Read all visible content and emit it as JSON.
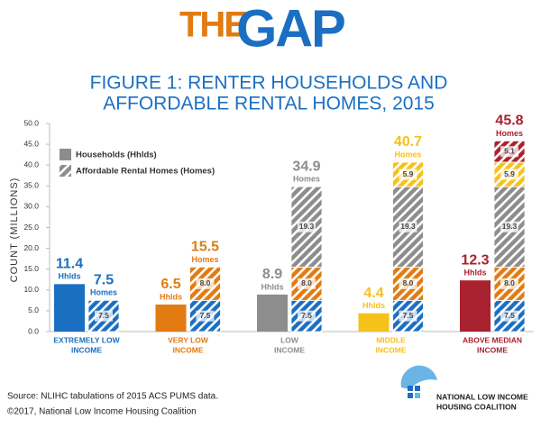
{
  "header": {
    "the": "THE",
    "gap": "GAP"
  },
  "chart_data": {
    "type": "stacked-pair-bar",
    "title": [
      "FIGURE 1: RENTER HOUSEHOLDS AND",
      "AFFORDABLE RENTAL HOMES, 2015"
    ],
    "y_label": "COUNT (MILLIONS)",
    "categories": [
      [
        "EXTREMELY LOW",
        "INCOME"
      ],
      [
        "VERY LOW",
        "INCOME"
      ],
      [
        "LOW",
        "INCOME"
      ],
      [
        "MIDDLE",
        "INCOME"
      ],
      [
        "ABOVE MEDIAN",
        "INCOME"
      ]
    ],
    "colors": [
      "#1b6fc2",
      "#e27b12",
      "#8d8d8d",
      "#f6c21a",
      "#a9222f"
    ],
    "households": {
      "name": "Households (Hhlds)",
      "label": "Hhlds",
      "values": [
        11.4,
        6.5,
        8.9,
        4.4,
        12.3
      ]
    },
    "homes": {
      "name": "Affordable Rental Homes (Homes)",
      "label": "Homes",
      "segments": [
        [
          7.5
        ],
        [
          7.5,
          8.0
        ],
        [
          7.5,
          8.0,
          19.3
        ],
        [
          7.5,
          8.0,
          19.3,
          5.9
        ],
        [
          7.5,
          8.0,
          19.3,
          5.9,
          5.1
        ]
      ],
      "segment_labels": [
        [
          "7.5"
        ],
        [
          "7.5",
          "8.0"
        ],
        [
          "7.5",
          "8.0",
          "19.3"
        ],
        [
          "7.5",
          "8.0",
          "19.3",
          "5.9"
        ],
        [
          "7.5",
          "8.0",
          "19.3",
          "5.9",
          "5.1"
        ]
      ],
      "totals": [
        7.5,
        15.5,
        34.9,
        40.7,
        45.8
      ]
    },
    "ylim": [
      0,
      50
    ],
    "yticks": [
      {
        "value": 0,
        "label": "0.0"
      },
      {
        "value": 5,
        "label": "5.0"
      },
      {
        "value": 10,
        "label": "10.0"
      },
      {
        "value": 15,
        "label": "15.0"
      },
      {
        "value": 20,
        "label": "20.0"
      },
      {
        "value": 25,
        "label": "25.0"
      },
      {
        "value": 30,
        "label": "30.0"
      },
      {
        "value": 35,
        "label": "35.0"
      },
      {
        "value": 40,
        "label": "40.0"
      },
      {
        "value": 45,
        "label": "45.0"
      },
      {
        "value": 50,
        "label": "50.0"
      }
    ]
  },
  "footer": {
    "source": "Source: NLIHC tabulations of 2015 ACS PUMS data.",
    "copyright": "©2017, National Low Income Housing Coalition",
    "org": [
      "NATIONAL LOW INCOME",
      "HOUSING COALITION"
    ]
  }
}
